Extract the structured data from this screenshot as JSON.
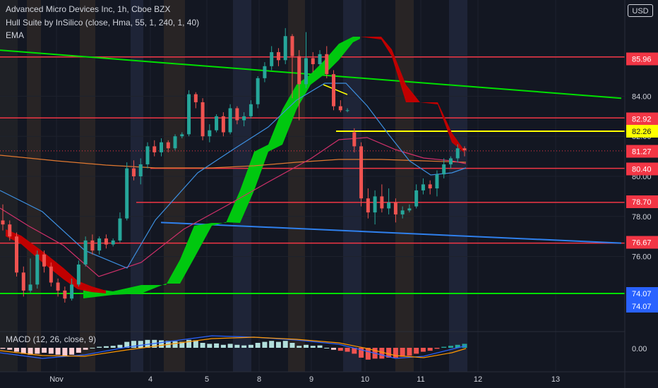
{
  "legend": {
    "title": "Advanced Micro Devices Inc, 1h, Cboe BZX",
    "hull": "Hull Suite by InSilico (close, Hma, 55, 1, 240, 1, 40)",
    "ema": "EMA",
    "macd": "MACD (12, 26, close, 9)"
  },
  "currency_button": "USD",
  "colors": {
    "background": "#131722",
    "up": "#26a69a",
    "down": "#ef5350",
    "hull_up": "#00c80f",
    "hull_down": "#c00000",
    "support_line": "#00e000",
    "trend_blue": "#2f80ed",
    "yellow": "#ffff00",
    "red_level": "#f23645"
  },
  "chart_data": {
    "type": "candlestick",
    "x_ticks": [
      "Nov",
      "4",
      "5",
      "8",
      "9",
      "10",
      "11",
      "12",
      "13"
    ],
    "y_ticks": [
      76.0,
      78.0,
      80.0,
      82.0,
      84.0,
      86.0
    ],
    "y_range": [
      73.0,
      88.0
    ],
    "price_levels": [
      {
        "value": "85.96",
        "color": "#f23645"
      },
      {
        "value": "82.92",
        "color": "#f23645"
      },
      {
        "value": "82.26",
        "color": "#ffff00"
      },
      {
        "value": "81.27",
        "color": "#f23645"
      },
      {
        "value": "80.40",
        "color": "#f23645"
      },
      {
        "value": "78.70",
        "color": "#f23645"
      },
      {
        "value": "76.67",
        "color": "#f23645"
      },
      {
        "value": "74.07",
        "color": "#2962ff"
      },
      {
        "value": "74.07",
        "color": "#2962ff"
      }
    ],
    "macd_axis_label": "0.00",
    "candles": [
      [
        77.8,
        77.6,
        78.6,
        77.3
      ],
      [
        77.6,
        77.0,
        77.8,
        76.8
      ],
      [
        77.0,
        75.2,
        77.2,
        75.0
      ],
      [
        75.2,
        74.3,
        75.5,
        74.0
      ],
      [
        74.3,
        74.6,
        75.9,
        74.2
      ],
      [
        74.6,
        76.1,
        76.3,
        74.4
      ],
      [
        76.1,
        75.5,
        76.3,
        75.2
      ],
      [
        75.5,
        74.7,
        75.7,
        74.5
      ],
      [
        74.7,
        74.3,
        74.9,
        74.0
      ],
      [
        74.3,
        73.9,
        74.5,
        73.7
      ],
      [
        73.9,
        74.6,
        74.9,
        73.8
      ],
      [
        74.6,
        75.6,
        75.8,
        74.5
      ],
      [
        75.6,
        76.8,
        77.0,
        75.5
      ],
      [
        76.8,
        76.3,
        77.1,
        76.1
      ],
      [
        76.3,
        76.9,
        77.0,
        76.1
      ],
      [
        76.9,
        76.6,
        77.1,
        76.4
      ],
      [
        76.6,
        76.8,
        76.9,
        76.5
      ],
      [
        76.8,
        77.9,
        78.2,
        76.7
      ],
      [
        77.9,
        80.4,
        80.7,
        77.8
      ],
      [
        80.4,
        80.0,
        80.8,
        79.8
      ],
      [
        80.0,
        80.6,
        80.9,
        79.6
      ],
      [
        80.6,
        81.5,
        81.7,
        80.4
      ],
      [
        81.5,
        81.2,
        81.8,
        81.0
      ],
      [
        81.2,
        81.7,
        81.9,
        81.0
      ],
      [
        81.7,
        81.4,
        81.8,
        81.2
      ],
      [
        81.4,
        82.0,
        82.1,
        81.3
      ],
      [
        82.0,
        82.1,
        82.2,
        81.9
      ],
      [
        82.1,
        84.1,
        84.3,
        82.0
      ],
      [
        84.1,
        83.7,
        84.2,
        83.4
      ],
      [
        83.7,
        82.0,
        83.9,
        81.8
      ],
      [
        82.0,
        82.3,
        82.6,
        81.7
      ],
      [
        82.3,
        83.0,
        83.1,
        82.2
      ],
      [
        83.0,
        82.2,
        83.2,
        82.0
      ],
      [
        82.2,
        83.4,
        83.6,
        82.1
      ],
      [
        83.4,
        82.8,
        83.5,
        82.6
      ],
      [
        82.8,
        83.0,
        83.2,
        82.5
      ],
      [
        83.0,
        83.6,
        83.8,
        82.9
      ],
      [
        83.6,
        84.9,
        85.0,
        83.4
      ],
      [
        84.9,
        85.5,
        85.7,
        84.7
      ],
      [
        85.5,
        86.2,
        86.5,
        85.3
      ],
      [
        86.2,
        85.8,
        86.4,
        85.5
      ],
      [
        85.8,
        87.0,
        87.4,
        85.6
      ],
      [
        87.0,
        86.0,
        87.1,
        83.9
      ],
      [
        86.0,
        84.6,
        86.3,
        82.8
      ],
      [
        84.6,
        85.9,
        87.2,
        84.4
      ],
      [
        85.9,
        85.6,
        86.2,
        85.2
      ],
      [
        85.6,
        86.1,
        86.3,
        85.5
      ],
      [
        86.1,
        85.1,
        86.5,
        84.9
      ],
      [
        85.1,
        83.5,
        85.3,
        83.3
      ],
      [
        83.5,
        83.3,
        83.8,
        83.2
      ],
      [
        83.3,
        83.3,
        83.4,
        83.2
      ],
      [
        82.2,
        81.5,
        82.4,
        81.2
      ],
      [
        81.5,
        78.9,
        81.7,
        78.5
      ],
      [
        78.9,
        78.2,
        79.4,
        77.9
      ],
      [
        78.2,
        79.0,
        79.3,
        77.6
      ],
      [
        79.0,
        78.4,
        79.6,
        78.2
      ],
      [
        78.4,
        78.7,
        79.4,
        78.1
      ],
      [
        78.7,
        78.1,
        78.9,
        77.7
      ],
      [
        78.1,
        78.3,
        78.5,
        77.9
      ],
      [
        78.3,
        78.4,
        78.6,
        78.2
      ],
      [
        78.5,
        79.3,
        79.6,
        78.4
      ],
      [
        79.3,
        79.6,
        79.9,
        79.1
      ],
      [
        79.6,
        79.4,
        79.8,
        79.1
      ],
      [
        79.4,
        80.1,
        80.3,
        79.0
      ],
      [
        80.1,
        80.6,
        80.9,
        79.9
      ],
      [
        80.6,
        80.9,
        81.0,
        80.4
      ],
      [
        80.9,
        81.4,
        81.6,
        80.7
      ],
      [
        81.4,
        81.3,
        81.5,
        81.0
      ]
    ],
    "macd_histogram": [
      -0.05,
      -0.1,
      -0.2,
      -0.3,
      -0.35,
      -0.3,
      -0.25,
      -0.3,
      -0.35,
      -0.4,
      -0.35,
      -0.25,
      -0.1,
      0.0,
      0.05,
      0.08,
      0.1,
      0.15,
      0.3,
      0.35,
      0.35,
      0.4,
      0.4,
      0.38,
      0.35,
      0.33,
      0.3,
      0.4,
      0.38,
      0.25,
      0.2,
      0.22,
      0.15,
      0.2,
      0.15,
      0.12,
      0.15,
      0.25,
      0.3,
      0.35,
      0.3,
      0.35,
      0.25,
      0.1,
      0.15,
      0.1,
      0.12,
      0.0,
      -0.1,
      -0.15,
      -0.2,
      -0.3,
      -0.5,
      -0.6,
      -0.55,
      -0.55,
      -0.5,
      -0.5,
      -0.45,
      -0.4,
      -0.3,
      -0.2,
      -0.15,
      -0.05,
      0.05,
      0.1,
      0.15,
      0.2
    ],
    "overlays": {
      "green_descending_line": [
        [
          0,
          86.3
        ],
        [
          880,
          83.9
        ]
      ],
      "green_support_line": [
        [
          0,
          74.07
        ],
        [
          880,
          74.07
        ]
      ],
      "blue_trend_line": [
        [
          228,
          77.7
        ],
        [
          880,
          76.67
        ]
      ],
      "yellow_segment": [
        [
          476,
          82.26
        ],
        [
          880,
          82.26
        ]
      ]
    }
  }
}
